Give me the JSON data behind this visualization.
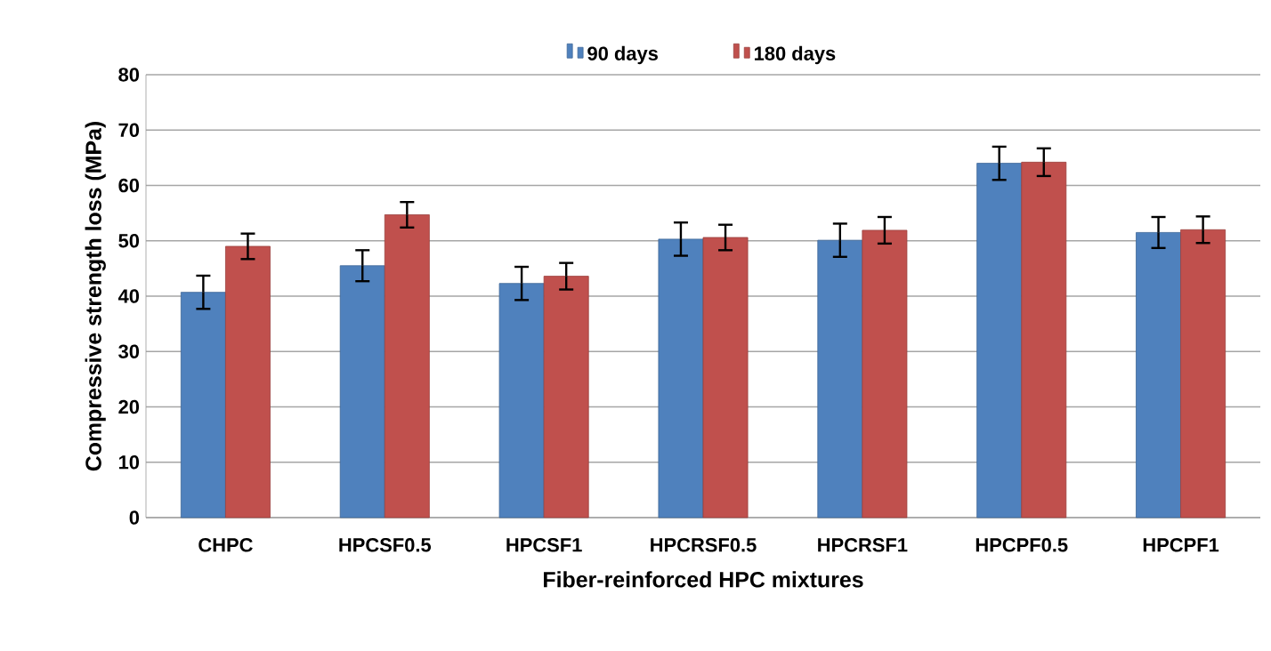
{
  "chart_data": {
    "type": "bar",
    "xlabel": "Fiber-reinforced  HPC mixtures",
    "ylabel": "Compressive strength loss (MPa)",
    "categories": [
      "CHPC",
      "HPCSF0.5",
      "HPCSF1",
      "HPCRSF0.5",
      "HPCRSF1",
      "HPCPF0.5",
      "HPCPF1"
    ],
    "series": [
      {
        "name": "90 days",
        "color": "#4f81bd",
        "values": [
          40.7,
          45.5,
          42.3,
          50.3,
          50.1,
          64.0,
          51.5
        ],
        "errors": [
          3.0,
          2.8,
          3.0,
          3.0,
          3.0,
          3.0,
          2.8
        ]
      },
      {
        "name": "180 days",
        "color": "#c0504d",
        "values": [
          49.0,
          54.7,
          43.6,
          50.6,
          51.9,
          64.2,
          52.0
        ],
        "errors": [
          2.3,
          2.3,
          2.4,
          2.3,
          2.4,
          2.5,
          2.4
        ]
      }
    ],
    "ylim": [
      0,
      80
    ],
    "yticks": [
      0,
      10,
      20,
      30,
      40,
      50,
      60,
      70,
      80
    ],
    "grid": "y",
    "legend": "top"
  }
}
